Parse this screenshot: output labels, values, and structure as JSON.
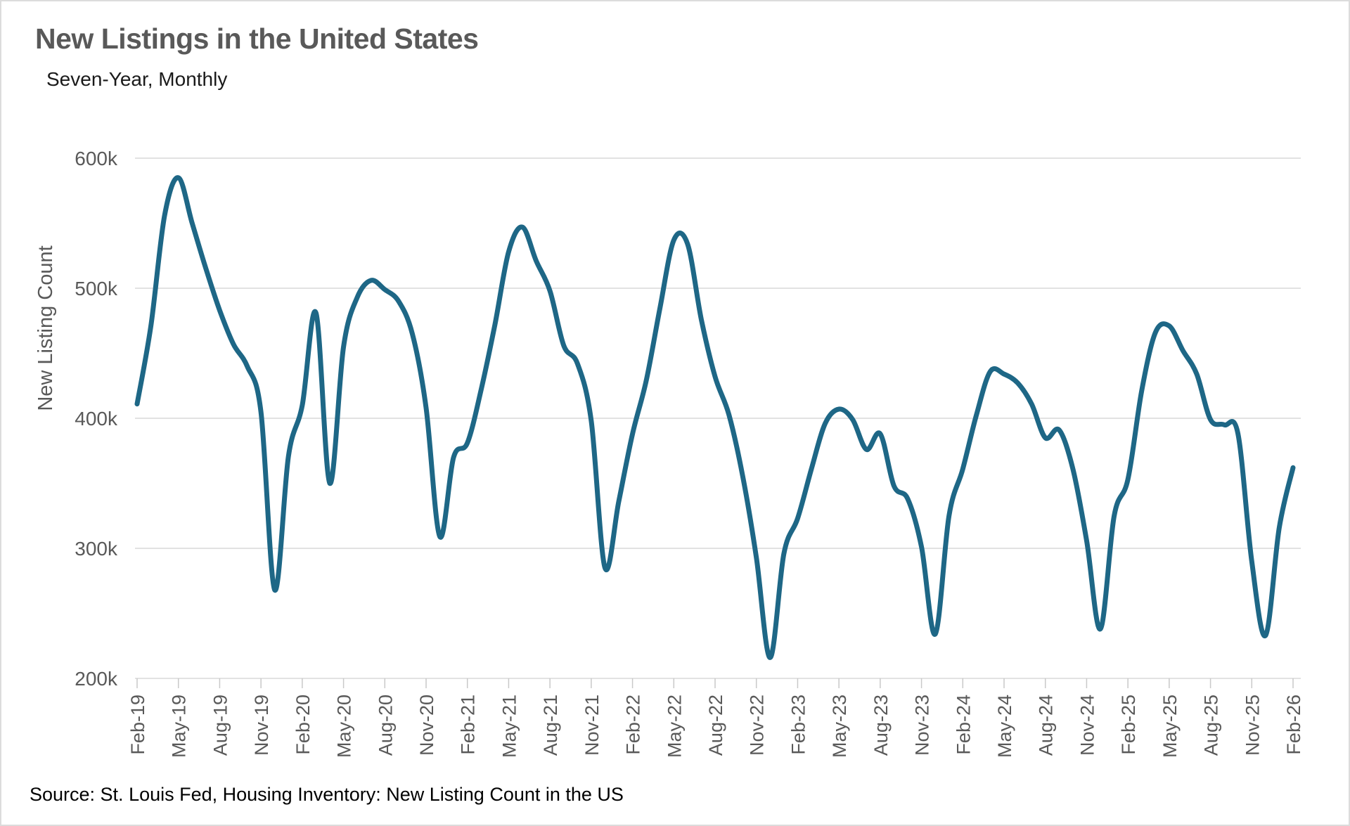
{
  "header": {
    "title": "New Listings in the United States",
    "subtitle": "Seven-Year, Monthly"
  },
  "footer": {
    "source": "Source: St. Louis Fed, Housing Inventory: New Listing Count in the US"
  },
  "chart_data": {
    "type": "line",
    "title": "New Listings in the United States",
    "subtitle": "Seven-Year, Monthly",
    "xlabel": "",
    "ylabel": "New Listing Count",
    "units": "thousands",
    "ylim": [
      200,
      600
    ],
    "y_ticks": [
      600,
      500,
      400,
      300,
      200
    ],
    "y_tick_suffix": "k",
    "x_tick_every": 3,
    "grid": true,
    "legend": "none",
    "line_color": "#1e6786",
    "grid_color": "#d9d9d9",
    "tick_color": "#c9c9c9",
    "label_color": "#595959",
    "x": [
      "Feb-19",
      "Mar-19",
      "Apr-19",
      "May-19",
      "Jun-19",
      "Jul-19",
      "Aug-19",
      "Sep-19",
      "Oct-19",
      "Nov-19",
      "Dec-19",
      "Jan-20",
      "Feb-20",
      "Mar-20",
      "Apr-20",
      "May-20",
      "Jun-20",
      "Jul-20",
      "Aug-20",
      "Sep-20",
      "Oct-20",
      "Nov-20",
      "Dec-20",
      "Jan-21",
      "Feb-21",
      "Mar-21",
      "Apr-21",
      "May-21",
      "Jun-21",
      "Jul-21",
      "Aug-21",
      "Sep-21",
      "Oct-21",
      "Nov-21",
      "Dec-21",
      "Jan-22",
      "Feb-22",
      "Mar-22",
      "Apr-22",
      "May-22",
      "Jun-22",
      "Jul-22",
      "Aug-22",
      "Sep-22",
      "Oct-22",
      "Nov-22",
      "Dec-22",
      "Jan-23",
      "Feb-23",
      "Mar-23",
      "Apr-23",
      "May-23",
      "Jun-23",
      "Jul-23",
      "Aug-23",
      "Sep-23",
      "Oct-23",
      "Nov-23",
      "Dec-23",
      "Jan-24",
      "Feb-24",
      "Mar-24",
      "Apr-24",
      "May-24",
      "Jun-24",
      "Jul-24",
      "Aug-24",
      "Sep-24",
      "Oct-24",
      "Nov-24",
      "Dec-24",
      "Jan-25",
      "Feb-25",
      "Mar-25",
      "Apr-25",
      "May-25",
      "Jun-25",
      "Jul-25",
      "Aug-25",
      "Sep-25",
      "Oct-25",
      "Nov-25",
      "Dec-25",
      "Jan-26",
      "Feb-26"
    ],
    "series": [
      {
        "name": "New Listing Count",
        "values": [
          411,
          471,
          556,
          585,
          550,
          515,
          483,
          457,
          440,
          405,
          268,
          371,
          410,
          481,
          350,
          455,
          493,
          506,
          499,
          490,
          465,
          408,
          309,
          370,
          381,
          422,
          472,
          528,
          547,
          521,
          498,
          456,
          442,
          398,
          285,
          336,
          388,
          429,
          485,
          537,
          534,
          476,
          432,
          403,
          356,
          293,
          216,
          296,
          323,
          361,
          396,
          407,
          399,
          376,
          388,
          348,
          338,
          301,
          234,
          325,
          361,
          403,
          436,
          434,
          427,
          411,
          385,
          391,
          361,
          306,
          238,
          325,
          353,
          421,
          466,
          471,
          452,
          434,
          399,
          395,
          388,
          290,
          233,
          316,
          362
        ]
      }
    ]
  }
}
